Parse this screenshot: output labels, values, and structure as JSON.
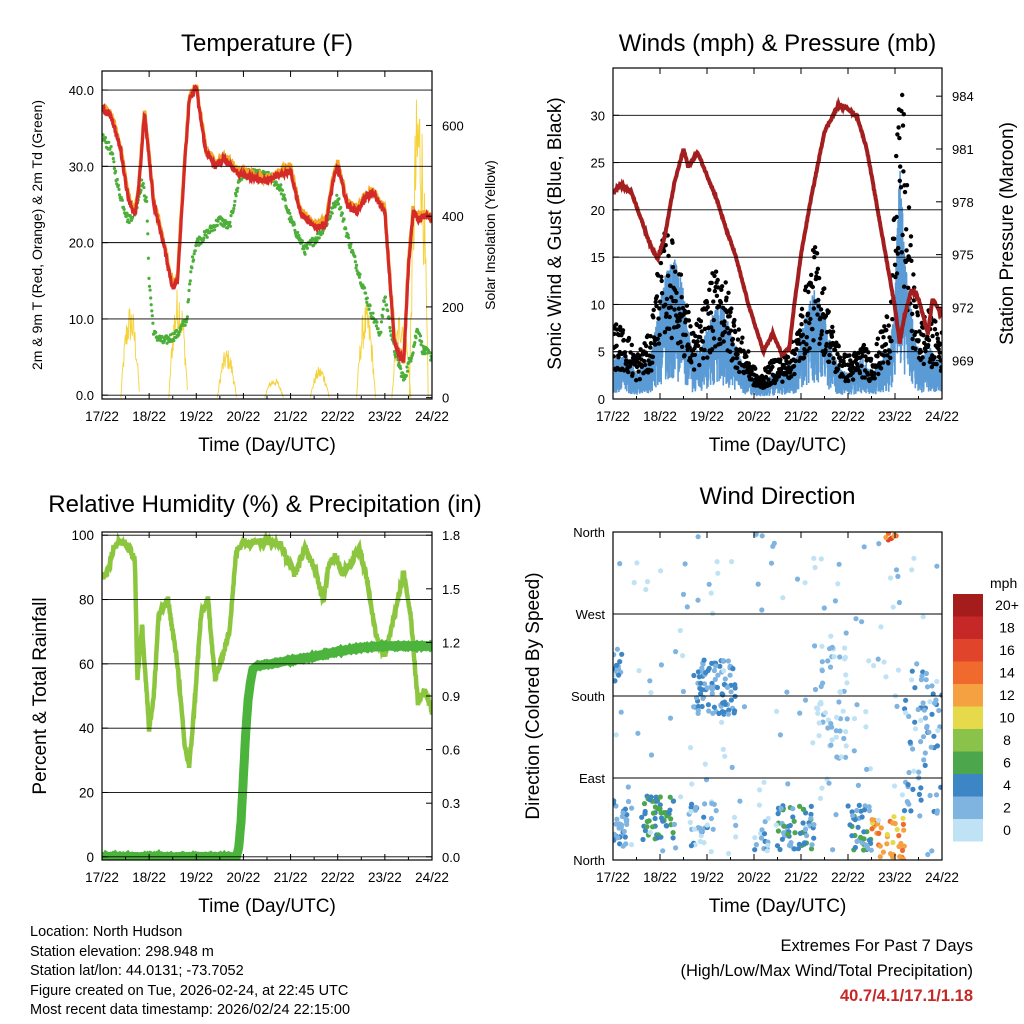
{
  "colors": {
    "temp_red": "#d42a2a",
    "temp_orange": "#f5a623",
    "dewpoint_green": "#4caf3a",
    "solar_yellow": "#f5d23a",
    "wind_blue": "#5a9bd5",
    "gust_black": "#000000",
    "pressure_maroon": "#a31f1f",
    "rh_lightgreen": "#8cc63f",
    "precip_green": "#4cb43c",
    "extremes_red": "#c62828"
  },
  "footer": {
    "location": "Location: North Hudson",
    "elevation": "Station elevation: 298.948 m",
    "latlon": "Station lat/lon: 44.0131; -73.7052",
    "created": "Figure created on Tue, 2026-02-24, at 22:45 UTC",
    "recent": "Most recent data timestamp: 2026/02/24 22:15:00"
  },
  "extremes": {
    "title": "Extremes For Past 7 Days",
    "subtitle": "(High/Low/Max Wind/Total Precipitation)",
    "values": "40.7/4.1/17.1/1.18"
  },
  "chart_data": [
    {
      "id": "temperature",
      "type": "line",
      "title": "Temperature (F)",
      "xlabel": "Time (Day/UTC)",
      "ylabel": "2m & 9m T (Red, Orange) & 2m Td (Green)",
      "y2label": "Solar Insolation (Yellow)",
      "x_ticks": [
        "17/22",
        "18/22",
        "19/22",
        "20/22",
        "21/22",
        "22/22",
        "23/22",
        "24/22"
      ],
      "xlim": [
        0,
        7
      ],
      "ylim": [
        -0.5,
        42.5
      ],
      "y_ticks": [
        0,
        10,
        20,
        30,
        40
      ],
      "y_tick_labels": [
        "0.0",
        "10.0",
        "20.0",
        "30.0",
        "40.0"
      ],
      "y2lim": [
        -3,
        720
      ],
      "y2_ticks": [
        0,
        200,
        400,
        600
      ],
      "y2_tick_labels": [
        "0",
        "200",
        "400",
        "600"
      ],
      "series": [
        {
          "name": "2m T",
          "color": "#d42a2a",
          "x": [
            0,
            0.2,
            0.4,
            0.55,
            0.7,
            0.78,
            0.9,
            1.1,
            1.3,
            1.5,
            1.6,
            1.75,
            1.85,
            2.0,
            2.05,
            2.2,
            2.4,
            2.6,
            2.9,
            3.2,
            3.5,
            3.8,
            4.0,
            4.2,
            4.5,
            4.75,
            4.9,
            5.0,
            5.2,
            5.4,
            5.6,
            5.75,
            5.9,
            6.0,
            6.2,
            6.4,
            6.5,
            6.6,
            6.7,
            6.85,
            7.0
          ],
          "values": [
            37.5,
            36.5,
            32,
            26,
            23.5,
            27,
            37,
            25,
            20,
            14,
            15,
            30,
            38.5,
            40.5,
            38,
            32,
            30,
            31,
            29,
            28.5,
            28,
            29,
            29.5,
            24,
            22,
            22.5,
            28,
            30,
            25,
            24,
            26,
            26.5,
            25,
            24,
            7,
            4.1,
            17,
            24,
            23,
            23.5,
            23
          ]
        },
        {
          "name": "9m T",
          "color": "#f5a623",
          "x": [
            0,
            0.2,
            0.4,
            0.55,
            0.7,
            0.78,
            0.9,
            1.1,
            1.3,
            1.5,
            1.6,
            1.75,
            1.85,
            2.0,
            2.05,
            2.2,
            2.4,
            2.6,
            2.9,
            3.2,
            3.5,
            3.8,
            4.0,
            4.2,
            4.5,
            4.75,
            4.9,
            5.0,
            5.2,
            5.4,
            5.6,
            5.75,
            5.9,
            6.0,
            6.2,
            6.4,
            6.5,
            6.6,
            6.7,
            6.85,
            7.0
          ],
          "values": [
            37.8,
            36.8,
            32.4,
            26.4,
            23.9,
            27.4,
            37.4,
            25.4,
            20.4,
            14.4,
            15.4,
            30.4,
            38.9,
            40.7,
            38.4,
            32.4,
            30.4,
            31.4,
            29.4,
            28.9,
            28.4,
            29.4,
            29.9,
            24.4,
            22.4,
            22.9,
            28.4,
            30.4,
            25.4,
            24.4,
            26.4,
            26.9,
            25.4,
            24.4,
            7.4,
            4.5,
            17.4,
            24.4,
            23.4,
            23.9,
            23.4
          ]
        },
        {
          "name": "2m Td",
          "color": "#4caf3a",
          "x": [
            0,
            0.2,
            0.35,
            0.55,
            0.7,
            0.85,
            0.95,
            1.0,
            1.1,
            1.3,
            1.6,
            1.8,
            1.9,
            2.0,
            2.2,
            2.5,
            2.7,
            2.9,
            3.0,
            3.3,
            3.6,
            3.8,
            4.0,
            4.3,
            4.6,
            4.8,
            5.0,
            5.2,
            5.5,
            5.7,
            5.9,
            6.0,
            6.2,
            6.4,
            6.5,
            6.6,
            6.7,
            6.8,
            7.0
          ],
          "values": [
            34,
            32,
            27,
            23,
            24,
            28,
            25,
            15,
            8,
            7,
            8,
            10,
            17,
            20,
            21,
            23,
            22,
            28,
            29,
            29,
            28.5,
            27,
            23,
            19,
            21,
            23,
            26,
            21,
            15,
            11,
            8,
            13,
            6,
            2,
            4,
            6,
            9,
            6,
            5
          ]
        }
      ],
      "solar": {
        "name": "Solar Insolation",
        "color": "#f5d23a",
        "day_peaks": [
          {
            "center": 0.6,
            "peak": 210
          },
          {
            "center": 1.62,
            "peak": 250
          },
          {
            "center": 2.65,
            "peak": 110
          },
          {
            "center": 3.65,
            "peak": 45
          },
          {
            "center": 4.62,
            "peak": 70
          },
          {
            "center": 5.6,
            "peak": 210
          },
          {
            "center": 6.35,
            "peak": 205
          },
          {
            "center": 6.72,
            "peak": 710
          }
        ]
      }
    },
    {
      "id": "winds_pressure",
      "type": "line",
      "title": "Winds (mph) & Pressure (mb)",
      "xlabel": "Time (Day/UTC)",
      "ylabel": "Sonic Wind & Gust (Blue, Black)",
      "y2label": "Station Pressure (Maroon)",
      "x_ticks": [
        "17/22",
        "18/22",
        "19/22",
        "20/22",
        "21/22",
        "22/22",
        "23/22",
        "24/22"
      ],
      "xlim": [
        0,
        7
      ],
      "ylim": [
        0,
        35
      ],
      "y_ticks": [
        0,
        5,
        10,
        15,
        20,
        25,
        30
      ],
      "y_tick_labels": [
        "0",
        "5",
        "10",
        "15",
        "20",
        "25",
        "30"
      ],
      "y2lim": [
        966.8,
        985.6
      ],
      "y2_ticks": [
        969,
        972,
        975,
        978,
        981,
        984
      ],
      "y2_tick_labels": [
        "969",
        "972",
        "975",
        "978",
        "981",
        "984"
      ],
      "series": [
        {
          "name": "Station Pressure",
          "color": "#a31f1f",
          "x": [
            0,
            0.15,
            0.4,
            0.6,
            0.8,
            0.95,
            1.1,
            1.3,
            1.5,
            1.6,
            1.8,
            2.0,
            2.2,
            2.4,
            2.6,
            2.9,
            3.2,
            3.4,
            3.6,
            3.75,
            3.85,
            4.0,
            4.2,
            4.5,
            4.8,
            5.0,
            5.2,
            5.4,
            5.6,
            5.8,
            6.0,
            6.1,
            6.2,
            6.35,
            6.5,
            6.7,
            6.8,
            7.0
          ],
          "values": [
            978.5,
            979,
            978.5,
            977,
            975.5,
            974.8,
            976,
            979,
            981,
            980,
            980.8,
            979.5,
            978.2,
            976.5,
            975,
            972,
            969.5,
            970.5,
            969.3,
            969.7,
            972,
            975,
            978,
            982,
            983.5,
            983.3,
            982.8,
            981,
            978,
            975,
            972,
            970,
            971.5,
            973,
            972.5,
            970.5,
            972.5,
            971.5
          ]
        },
        {
          "name": "Sonic Wind",
          "color": "#5a9bd5",
          "x": [
            0,
            0.3,
            0.5,
            0.8,
            0.95,
            1.1,
            1.3,
            1.5,
            1.7,
            1.9,
            2.1,
            2.3,
            2.5,
            2.7,
            2.9,
            3.1,
            3.3,
            3.5,
            3.7,
            3.9,
            4.1,
            4.3,
            4.5,
            4.7,
            4.9,
            5.1,
            5.3,
            5.5,
            5.7,
            5.9,
            6.0,
            6.1,
            6.25,
            6.4,
            6.55,
            6.7,
            6.85,
            7.0
          ],
          "values": [
            3,
            3,
            2,
            3,
            6,
            9,
            10,
            8,
            3,
            4,
            6,
            7,
            5,
            3,
            2,
            1,
            1.5,
            2,
            2,
            3,
            6,
            8,
            6,
            3,
            2,
            2,
            3,
            2,
            3,
            4,
            8,
            17,
            9,
            5,
            3,
            4,
            3,
            3
          ]
        },
        {
          "name": "Gust",
          "color": "#000000",
          "x": [
            0,
            0.3,
            0.5,
            0.8,
            0.95,
            1.1,
            1.3,
            1.5,
            1.7,
            1.9,
            2.1,
            2.3,
            2.5,
            2.7,
            2.9,
            3.1,
            3.3,
            3.5,
            3.7,
            3.9,
            4.1,
            4.3,
            4.5,
            4.7,
            4.9,
            5.1,
            5.3,
            5.5,
            5.7,
            5.9,
            6.0,
            6.1,
            6.25,
            6.4,
            6.55,
            6.7,
            6.85,
            7.0
          ],
          "values": [
            7,
            6,
            4,
            6,
            12,
            15,
            14,
            10,
            6,
            8,
            11,
            12,
            9,
            6,
            4,
            2,
            3,
            4,
            4,
            6,
            10,
            14,
            10,
            6,
            4,
            4,
            5,
            4,
            6,
            9,
            18,
            32.5,
            20,
            11,
            7,
            8,
            7,
            6
          ]
        }
      ]
    },
    {
      "id": "rh_precip",
      "type": "line",
      "title": "Relative Humidity (%) & Precipitation (in)",
      "xlabel": "Time (Day/UTC)",
      "ylabel": "Percent & Total Rainfall",
      "x_ticks": [
        "17/22",
        "18/22",
        "19/22",
        "20/22",
        "21/22",
        "22/22",
        "23/22",
        "24/22"
      ],
      "xlim": [
        0,
        7
      ],
      "ylim": [
        -1,
        101
      ],
      "y_ticks": [
        0,
        20,
        40,
        60,
        80,
        100
      ],
      "y_tick_labels": [
        "0",
        "20",
        "40",
        "60",
        "80",
        "100"
      ],
      "y2lim": [
        -0.018,
        1.818
      ],
      "y2_ticks": [
        0,
        0.3,
        0.6,
        0.9,
        1.2,
        1.5,
        1.8
      ],
      "y2_tick_labels": [
        "0.0",
        "0.3",
        "0.6",
        "0.9",
        "1.2",
        "1.5",
        "1.8"
      ],
      "series": [
        {
          "name": "Relative Humidity",
          "color": "#8cc63f",
          "x": [
            0,
            0.1,
            0.25,
            0.4,
            0.55,
            0.7,
            0.75,
            0.85,
            1.0,
            1.1,
            1.2,
            1.4,
            1.6,
            1.75,
            1.85,
            1.95,
            2.1,
            2.25,
            2.4,
            2.55,
            2.7,
            2.85,
            3.0,
            3.2,
            3.5,
            3.8,
            3.95,
            4.1,
            4.3,
            4.5,
            4.7,
            4.8,
            4.95,
            5.1,
            5.3,
            5.45,
            5.6,
            5.8,
            6.0,
            6.2,
            6.4,
            6.55,
            6.7,
            6.85,
            7.0
          ],
          "values": [
            87,
            88,
            96,
            98,
            97,
            92,
            55,
            72,
            40,
            50,
            75,
            80,
            60,
            35,
            28,
            45,
            75,
            80,
            55,
            62,
            70,
            95,
            98,
            98,
            98,
            97,
            92,
            88,
            96,
            90,
            80,
            90,
            94,
            88,
            92,
            96,
            88,
            70,
            62,
            75,
            88,
            75,
            48,
            52,
            45
          ]
        },
        {
          "name": "Total Precipitation",
          "color": "#4cb43c",
          "x": [
            0,
            1,
            2,
            2.85,
            2.9,
            2.95,
            3.0,
            3.05,
            3.1,
            3.15,
            3.2,
            3.3,
            3.6,
            4.0,
            4.5,
            5.0,
            5.5,
            6.0,
            6.5,
            7.0
          ],
          "values": [
            0,
            0,
            0,
            0,
            0.05,
            0.2,
            0.45,
            0.7,
            0.88,
            0.98,
            1.05,
            1.07,
            1.08,
            1.1,
            1.12,
            1.15,
            1.17,
            1.18,
            1.18,
            1.18
          ]
        }
      ],
      "precip_scale_note": "Precipitation plotted against right axis (in)"
    },
    {
      "id": "wind_direction",
      "type": "scatter",
      "title": "Wind Direction",
      "xlabel": "Time (Day/UTC)",
      "ylabel": "Direction (Colored By Speed)",
      "x_ticks": [
        "17/22",
        "18/22",
        "19/22",
        "20/22",
        "21/22",
        "22/22",
        "23/22",
        "24/22"
      ],
      "xlim": [
        0,
        7
      ],
      "y_ticks": [
        0,
        90,
        180,
        270,
        360
      ],
      "y_tick_labels": [
        "North",
        "East",
        "South",
        "West",
        "North"
      ],
      "ylim": [
        0,
        360
      ],
      "colorbar": {
        "title": "mph",
        "labels": [
          "20+",
          "18",
          "16",
          "14",
          "12",
          "10",
          "8",
          "6",
          "4",
          "2",
          "0"
        ],
        "colors": [
          "#a51c1c",
          "#c62828",
          "#e0452b",
          "#f06a2e",
          "#f5a142",
          "#e6d94a",
          "#8bc34a",
          "#4ca64c",
          "#3d86c6",
          "#7fb3e0",
          "#bfe3f5"
        ]
      },
      "clusters": [
        {
          "x_start": 0.0,
          "x_end": 0.3,
          "dir_center": 40,
          "dir_spread": 25,
          "speed": 3,
          "count": 30
        },
        {
          "x_start": 0.0,
          "x_end": 0.2,
          "dir_center": 215,
          "dir_spread": 20,
          "speed": 3,
          "count": 14
        },
        {
          "x_start": 0.6,
          "x_end": 1.3,
          "dir_center": 45,
          "dir_spread": 25,
          "speed": 5,
          "count": 55
        },
        {
          "x_start": 1.7,
          "x_end": 2.6,
          "dir_center": 190,
          "dir_spread": 30,
          "speed": 3,
          "count": 90
        },
        {
          "x_start": 1.6,
          "x_end": 2.2,
          "dir_center": 40,
          "dir_spread": 25,
          "speed": 2,
          "count": 30
        },
        {
          "x_start": 3.0,
          "x_end": 3.3,
          "dir_center": 20,
          "dir_spread": 25,
          "speed": 2,
          "count": 16
        },
        {
          "x_start": 3.5,
          "x_end": 4.3,
          "dir_center": 35,
          "dir_spread": 25,
          "speed": 4,
          "count": 55
        },
        {
          "x_start": 4.3,
          "x_end": 5.0,
          "dir_center": 180,
          "dir_spread": 70,
          "speed": 1,
          "count": 50
        },
        {
          "x_start": 5.0,
          "x_end": 5.5,
          "dir_center": 35,
          "dir_spread": 25,
          "speed": 4,
          "count": 40
        },
        {
          "x_start": 5.5,
          "x_end": 6.2,
          "dir_center": 25,
          "dir_spread": 25,
          "speed": 12,
          "count": 40
        },
        {
          "x_start": 5.8,
          "x_end": 6.1,
          "dir_center": 355,
          "dir_spread": 4,
          "speed": 14,
          "count": 8
        },
        {
          "x_start": 6.2,
          "x_end": 7.0,
          "dir_center": 130,
          "dir_spread": 80,
          "speed": 3,
          "count": 60
        },
        {
          "x_start": 0.0,
          "x_end": 7.0,
          "dir_center": 180,
          "dir_spread": 175,
          "speed": 1,
          "count": 160
        }
      ]
    }
  ]
}
